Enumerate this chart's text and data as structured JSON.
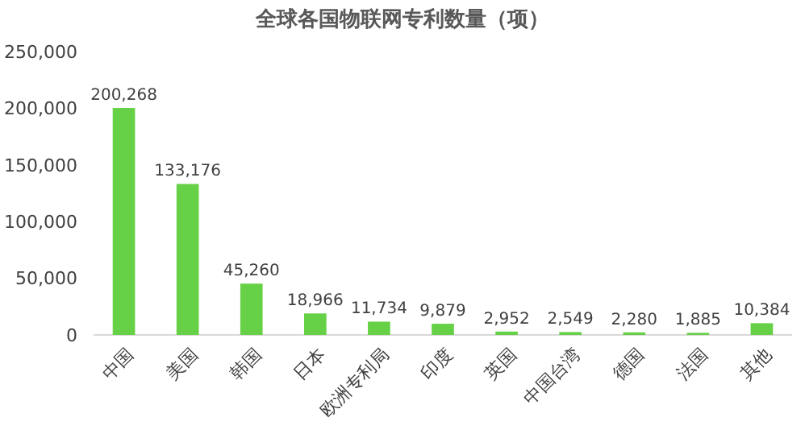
{
  "chart_data": {
    "type": "bar",
    "title": "全球各国物联网专利数量（项）",
    "categories": [
      "中国",
      "美国",
      "韩国",
      "日本",
      "欧洲专利局",
      "印度",
      "英国",
      "中国台湾",
      "德国",
      "法国",
      "其他"
    ],
    "values": [
      200268,
      133176,
      45260,
      18966,
      11734,
      9879,
      2952,
      2549,
      2280,
      1885,
      10384
    ],
    "value_labels": [
      "200,268",
      "133,176",
      "45,260",
      "18,966",
      "11,734",
      "9,879",
      "2,952",
      "2,549",
      "2,280",
      "1,885",
      "10,384"
    ],
    "color": "#66d147",
    "ylim": [
      0,
      250000
    ],
    "yticks": [
      {
        "value": 0,
        "label": "0"
      },
      {
        "value": 50000,
        "label": "50,000"
      },
      {
        "value": 100000,
        "label": "100,000"
      },
      {
        "value": 150000,
        "label": "150,000"
      },
      {
        "value": 200000,
        "label": "200,000"
      },
      {
        "value": 250000,
        "label": "250,000"
      }
    ],
    "grid": false
  }
}
